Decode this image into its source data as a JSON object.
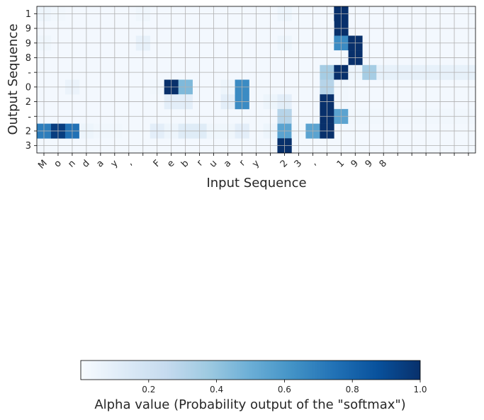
{
  "chart_data": {
    "type": "heatmap",
    "xlabel": "Input Sequence",
    "ylabel": "Output Sequence",
    "x_tick_labels": [
      "M",
      "o",
      "n",
      "d",
      "a",
      "y",
      ",",
      "",
      "F",
      "e",
      "b",
      "r",
      "u",
      "a",
      "r",
      "y",
      "",
      "2",
      "3",
      ",",
      "",
      "1",
      "9",
      "9",
      "8",
      "",
      "",
      "",
      "",
      "",
      ""
    ],
    "y_tick_labels": [
      "1",
      "9",
      "9",
      "8",
      "-",
      "0",
      "2",
      "-",
      "2",
      "3"
    ],
    "grid": true,
    "colormap": "Blues",
    "value_range": [
      0,
      1
    ],
    "cells": [
      {
        "row": 0,
        "col": 0,
        "value": 0.05
      },
      {
        "row": 0,
        "col": 1,
        "value": 0.03
      },
      {
        "row": 0,
        "col": 7,
        "value": 0.04
      },
      {
        "row": 0,
        "col": 17,
        "value": 0.05
      },
      {
        "row": 0,
        "col": 20,
        "value": 0.02
      },
      {
        "row": 0,
        "col": 21,
        "value": 1.0
      },
      {
        "row": 1,
        "col": 21,
        "value": 1.0
      },
      {
        "row": 1,
        "col": 20,
        "value": 0.02
      },
      {
        "row": 2,
        "col": 0,
        "value": 0.04
      },
      {
        "row": 2,
        "col": 7,
        "value": 0.08
      },
      {
        "row": 2,
        "col": 17,
        "value": 0.05
      },
      {
        "row": 2,
        "col": 21,
        "value": 0.65
      },
      {
        "row": 2,
        "col": 22,
        "value": 1.0
      },
      {
        "row": 3,
        "col": 22,
        "value": 1.0
      },
      {
        "row": 3,
        "col": 21,
        "value": 0.02
      },
      {
        "row": 4,
        "col": 20,
        "value": 0.35
      },
      {
        "row": 4,
        "col": 21,
        "value": 1.0
      },
      {
        "row": 4,
        "col": 22,
        "value": 0.05
      },
      {
        "row": 4,
        "col": 23,
        "value": 0.35
      },
      {
        "row": 4,
        "col": 24,
        "value": 0.08
      },
      {
        "row": 4,
        "col": 25,
        "value": 0.08
      },
      {
        "row": 4,
        "col": 26,
        "value": 0.08
      },
      {
        "row": 4,
        "col": 27,
        "value": 0.08
      },
      {
        "row": 4,
        "col": 28,
        "value": 0.08
      },
      {
        "row": 4,
        "col": 29,
        "value": 0.08
      },
      {
        "row": 4,
        "col": 30,
        "value": 0.08
      },
      {
        "row": 5,
        "col": 2,
        "value": 0.06
      },
      {
        "row": 5,
        "col": 8,
        "value": 0.03
      },
      {
        "row": 5,
        "col": 9,
        "value": 1.0
      },
      {
        "row": 5,
        "col": 10,
        "value": 0.45
      },
      {
        "row": 5,
        "col": 13,
        "value": 0.05
      },
      {
        "row": 5,
        "col": 14,
        "value": 0.65
      },
      {
        "row": 5,
        "col": 20,
        "value": 0.3
      },
      {
        "row": 5,
        "col": 21,
        "value": 0.03
      },
      {
        "row": 6,
        "col": 9,
        "value": 0.1
      },
      {
        "row": 6,
        "col": 10,
        "value": 0.1
      },
      {
        "row": 6,
        "col": 13,
        "value": 0.1
      },
      {
        "row": 6,
        "col": 14,
        "value": 0.65
      },
      {
        "row": 6,
        "col": 16,
        "value": 0.05
      },
      {
        "row": 6,
        "col": 17,
        "value": 0.1
      },
      {
        "row": 6,
        "col": 20,
        "value": 1.0
      },
      {
        "row": 6,
        "col": 21,
        "value": 0.03
      },
      {
        "row": 7,
        "col": 17,
        "value": 0.3
      },
      {
        "row": 7,
        "col": 20,
        "value": 1.0
      },
      {
        "row": 7,
        "col": 21,
        "value": 0.55
      },
      {
        "row": 7,
        "col": 22,
        "value": 0.03
      },
      {
        "row": 7,
        "col": 23,
        "value": 0.03
      },
      {
        "row": 7,
        "col": 24,
        "value": 0.03
      },
      {
        "row": 7,
        "col": 25,
        "value": 0.03
      },
      {
        "row": 7,
        "col": 26,
        "value": 0.03
      },
      {
        "row": 7,
        "col": 27,
        "value": 0.03
      },
      {
        "row": 7,
        "col": 28,
        "value": 0.03
      },
      {
        "row": 7,
        "col": 29,
        "value": 0.03
      },
      {
        "row": 7,
        "col": 30,
        "value": 0.03
      },
      {
        "row": 8,
        "col": 0,
        "value": 0.7
      },
      {
        "row": 8,
        "col": 1,
        "value": 0.95
      },
      {
        "row": 8,
        "col": 2,
        "value": 0.75
      },
      {
        "row": 8,
        "col": 3,
        "value": 0.05
      },
      {
        "row": 8,
        "col": 4,
        "value": 0.03
      },
      {
        "row": 8,
        "col": 5,
        "value": 0.03
      },
      {
        "row": 8,
        "col": 8,
        "value": 0.1
      },
      {
        "row": 8,
        "col": 9,
        "value": 0.05
      },
      {
        "row": 8,
        "col": 10,
        "value": 0.12
      },
      {
        "row": 8,
        "col": 11,
        "value": 0.12
      },
      {
        "row": 8,
        "col": 12,
        "value": 0.04
      },
      {
        "row": 8,
        "col": 13,
        "value": 0.04
      },
      {
        "row": 8,
        "col": 14,
        "value": 0.1
      },
      {
        "row": 8,
        "col": 16,
        "value": 0.05
      },
      {
        "row": 8,
        "col": 17,
        "value": 0.55
      },
      {
        "row": 8,
        "col": 18,
        "value": 0.03
      },
      {
        "row": 8,
        "col": 19,
        "value": 0.55
      },
      {
        "row": 8,
        "col": 20,
        "value": 1.0
      },
      {
        "row": 9,
        "col": 17,
        "value": 1.0
      }
    ]
  },
  "colorbar": {
    "label": "Alpha value (Probability output of the \"softmax\")",
    "range": [
      0,
      1
    ],
    "ticks": [
      0.2,
      0.4,
      0.6,
      0.8,
      1.0
    ],
    "tick_labels": [
      "0.2",
      "0.4",
      "0.6",
      "0.8",
      "1.0"
    ]
  }
}
